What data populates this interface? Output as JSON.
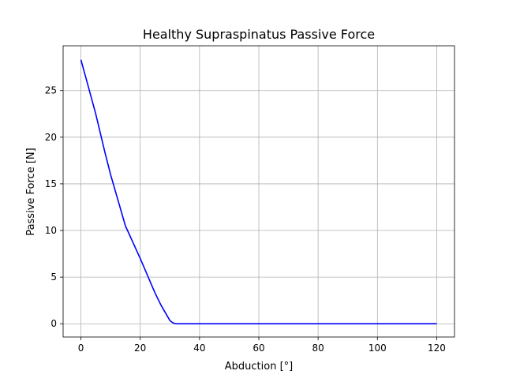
{
  "chart_data": {
    "type": "line",
    "title": "Healthy Supraspinatus Passive Force",
    "xlabel": "Abduction [°]",
    "ylabel": "Passive Force [N]",
    "xlim": [
      -6,
      126
    ],
    "ylim": [
      -1.42,
      29.8
    ],
    "xticks": [
      0,
      20,
      40,
      60,
      80,
      100,
      120
    ],
    "yticks": [
      0,
      5,
      10,
      15,
      20,
      25
    ],
    "xtick_labels": [
      "0",
      "20",
      "40",
      "60",
      "80",
      "100",
      "120"
    ],
    "ytick_labels": [
      "0",
      "5",
      "10",
      "15",
      "20",
      "25"
    ],
    "grid": true,
    "series": [
      {
        "color": "#0000ff",
        "x": [
          0,
          2,
          5,
          8,
          10,
          15,
          20,
          25,
          27,
          29,
          30,
          31,
          32,
          35,
          40,
          60,
          80,
          100,
          120
        ],
        "y": [
          28.3,
          26.0,
          22.5,
          18.5,
          16.0,
          10.5,
          7.0,
          3.3,
          2.0,
          0.9,
          0.35,
          0.1,
          0.0,
          0.0,
          0.0,
          0.0,
          0.0,
          0.0,
          0.0
        ]
      }
    ]
  }
}
